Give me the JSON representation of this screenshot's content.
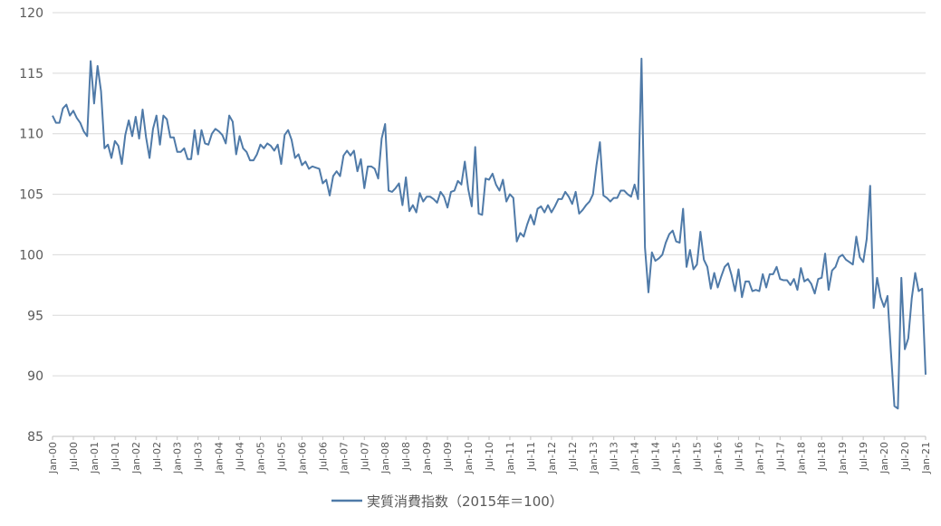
{
  "chart_data": {
    "type": "line",
    "ylim": [
      85,
      120
    ],
    "yticks": [
      85,
      90,
      95,
      100,
      105,
      110,
      115,
      120
    ],
    "grid": true,
    "legend_position": "bottom",
    "line_color": "#4f7aa8",
    "x_start": "2000-01",
    "x_end": "2021-01",
    "x_tick_labels": [
      "Jan-00",
      "Jul-00",
      "Jan-01",
      "Jul-01",
      "Jan-02",
      "Jul-02",
      "Jan-03",
      "Jul-03",
      "Jan-04",
      "Jul-04",
      "Jan-05",
      "Jul-05",
      "Jan-06",
      "Jul-06",
      "Jan-07",
      "Jul-07",
      "Jan-08",
      "Jul-08",
      "Jan-09",
      "Jul-09",
      "Jan-10",
      "Jul-10",
      "Jan-11",
      "Jul-11",
      "Jan-12",
      "Jul-12",
      "Jan-13",
      "Jul-13",
      "Jan-14",
      "Jul-14",
      "Jan-15",
      "Jul-15",
      "Jan-16",
      "Jul-16",
      "Jan-17",
      "Jul-17",
      "Jan-18",
      "Jul-18",
      "Jan-19",
      "Jul-19",
      "Jan-20",
      "Jul-20",
      "Jan-21"
    ],
    "series": [
      {
        "name": "実質消費指数（2015年＝100）",
        "values": [
          111.5,
          110.9,
          110.9,
          112.1,
          112.4,
          111.5,
          111.9,
          111.3,
          110.9,
          110.2,
          109.8,
          116.0,
          112.5,
          115.6,
          113.5,
          108.8,
          109.1,
          108.0,
          109.4,
          109.0,
          107.5,
          109.9,
          111.1,
          109.8,
          111.4,
          109.6,
          112.0,
          109.7,
          108.0,
          110.4,
          111.5,
          109.1,
          111.5,
          111.2,
          109.7,
          109.7,
          108.5,
          108.5,
          108.8,
          107.9,
          107.9,
          110.3,
          108.3,
          110.3,
          109.2,
          109.1,
          110.0,
          110.4,
          110.2,
          109.9,
          109.2,
          111.5,
          111.0,
          108.3,
          109.8,
          108.8,
          108.5,
          107.8,
          107.8,
          108.3,
          109.1,
          108.8,
          109.2,
          109.0,
          108.6,
          109.1,
          107.5,
          109.9,
          110.3,
          109.5,
          108.0,
          108.3,
          107.4,
          107.7,
          107.1,
          107.3,
          107.2,
          107.1,
          105.9,
          106.2,
          104.9,
          106.5,
          106.9,
          106.5,
          108.2,
          108.6,
          108.2,
          108.6,
          106.9,
          107.9,
          105.5,
          107.3,
          107.3,
          107.1,
          106.3,
          109.6,
          110.8,
          105.3,
          105.2,
          105.5,
          105.9,
          104.1,
          106.4,
          103.6,
          104.1,
          103.5,
          105.1,
          104.4,
          104.8,
          104.8,
          104.6,
          104.3,
          105.2,
          104.8,
          103.9,
          105.2,
          105.3,
          106.1,
          105.8,
          107.7,
          105.4,
          104.0,
          108.9,
          103.4,
          103.3,
          106.3,
          106.2,
          106.7,
          105.8,
          105.3,
          106.2,
          104.4,
          105.0,
          104.7,
          101.1,
          101.8,
          101.5,
          102.5,
          103.3,
          102.5,
          103.8,
          104.0,
          103.5,
          104.1,
          103.5,
          104.0,
          104.6,
          104.6,
          105.2,
          104.8,
          104.2,
          105.2,
          103.4,
          103.7,
          104.1,
          104.4,
          105.0,
          107.4,
          109.3,
          104.9,
          104.7,
          104.4,
          104.7,
          104.7,
          105.3,
          105.3,
          105.0,
          104.8,
          105.8,
          104.6,
          116.2,
          100.6,
          96.9,
          100.2,
          99.5,
          99.7,
          100.0,
          101.0,
          101.7,
          102.0,
          101.1,
          101.0,
          103.8,
          99.0,
          100.4,
          98.8,
          99.2,
          101.9,
          99.6,
          99.0,
          97.2,
          98.5,
          97.3,
          98.2,
          99.0,
          99.3,
          98.3,
          97.0,
          98.8,
          96.5,
          97.8,
          97.8,
          97.0,
          97.1,
          97.0,
          98.4,
          97.3,
          98.4,
          98.4,
          99.0,
          98.0,
          97.9,
          97.9,
          97.5,
          98.0,
          97.1,
          98.9,
          97.8,
          98.0,
          97.6,
          96.8,
          98.0,
          98.1,
          100.1,
          97.1,
          98.7,
          99.0,
          99.8,
          100.0,
          99.6,
          99.4,
          99.2,
          101.5,
          99.8,
          99.4,
          101.3,
          105.7,
          95.6,
          98.1,
          96.5,
          95.7,
          96.6,
          91.9,
          87.5,
          87.3,
          98.1,
          92.2,
          93.1,
          96.4,
          98.5,
          97.0,
          97.2,
          90.1
        ]
      }
    ]
  }
}
